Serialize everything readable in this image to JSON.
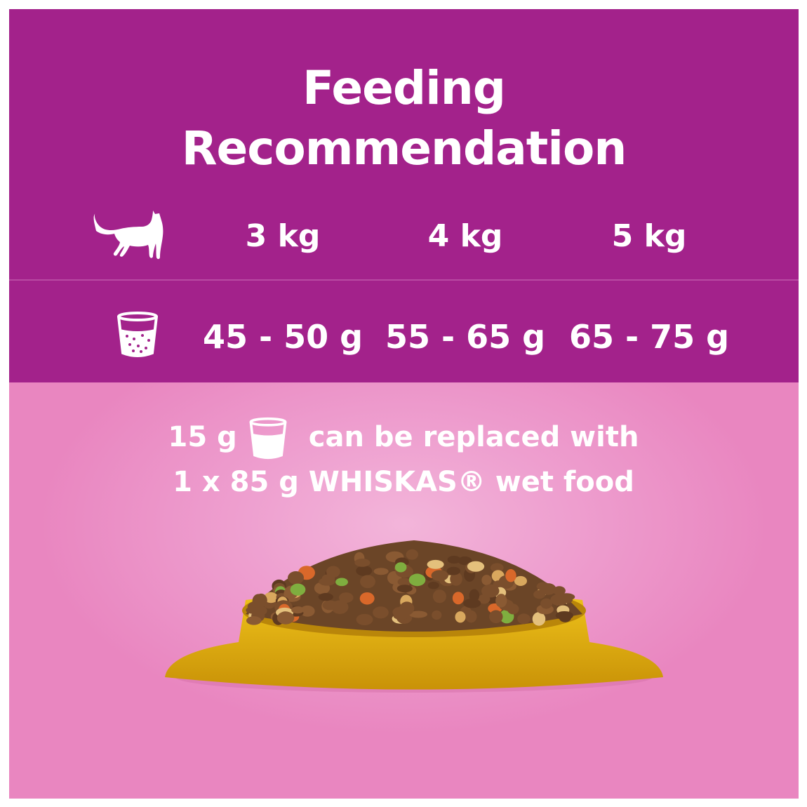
{
  "title_line1": "Feeding",
  "title_line2": "Recommendation",
  "weights": [
    "3 kg",
    "4 kg",
    "5 kg"
  ],
  "amounts": [
    "45 - 50 g",
    "55 - 65 g",
    "65 - 75 g"
  ],
  "note": {
    "amount": "15 g",
    "text1": "can be replaced with",
    "line2": "1 x 85 g WHISKAS® wet food"
  },
  "icons": {
    "weight_row": "cat-icon",
    "amount_row": "measuring-cup-icon"
  },
  "colors": {
    "purple": "#a3228b",
    "pink": "#e986c0",
    "bowl": "#e8b511"
  }
}
